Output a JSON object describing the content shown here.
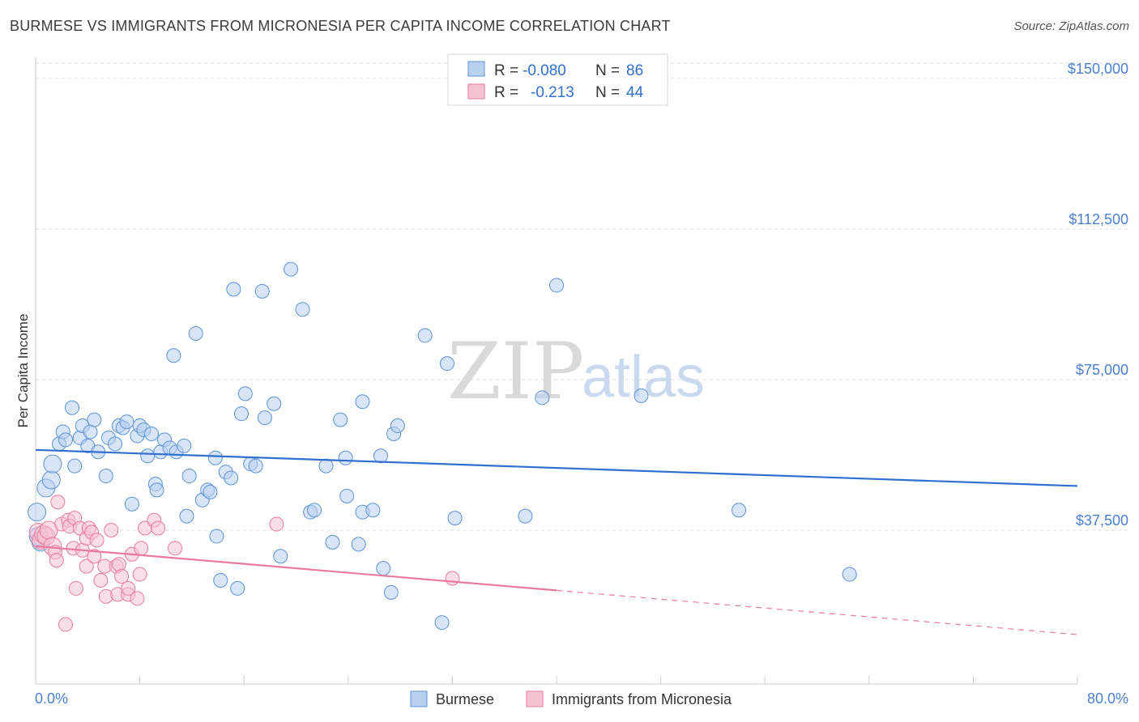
{
  "title": "BURMESE VS IMMIGRANTS FROM MICRONESIA PER CAPITA INCOME CORRELATION CHART",
  "source": "Source: ZipAtlas.com",
  "watermark": {
    "zip": "ZIP",
    "atlas": "atlas"
  },
  "colors": {
    "burmese": "#5b93d6",
    "burmese_fill": "#b8d0ee",
    "micronesia": "#e87aa0",
    "micronesia_fill": "#f6c3d3",
    "grid": "#dddddd",
    "tick_text": "#4a7fd0"
  },
  "legend": {
    "rows": [
      {
        "r_label": "R =",
        "r_value": "-0.080",
        "n_label": "N =",
        "n_value": "86"
      },
      {
        "r_label": "R =",
        "r_value": "-0.213",
        "n_label": "N =",
        "n_value": "44"
      }
    ]
  },
  "chart_data": {
    "type": "scatter",
    "title": "BURMESE VS IMMIGRANTS FROM MICRONESIA PER CAPITA INCOME CORRELATION CHART",
    "xlabel": "",
    "ylabel": "Per Capita Income",
    "xlim": [
      0,
      80
    ],
    "ylim": [
      0,
      155000
    ],
    "x_tick_labels": [
      "0.0%",
      "80.0%"
    ],
    "y_ticks": [
      37500,
      75000,
      112500,
      150000
    ],
    "y_tick_labels": [
      "$37,500",
      "$75,000",
      "$112,500",
      "$150,000"
    ],
    "legend_position": "bottom",
    "series": [
      {
        "name": "Burmese",
        "color": "#5b93d6",
        "points": [
          [
            0.1,
            42000
          ],
          [
            0.8,
            48000
          ],
          [
            1.2,
            50000
          ],
          [
            1.3,
            54000
          ],
          [
            1.8,
            59000
          ],
          [
            2.1,
            62000
          ],
          [
            2.3,
            60000
          ],
          [
            2.8,
            68000
          ],
          [
            3.0,
            53500
          ],
          [
            3.4,
            60500
          ],
          [
            3.6,
            63500
          ],
          [
            4.0,
            58500
          ],
          [
            4.2,
            62000
          ],
          [
            4.5,
            65000
          ],
          [
            4.8,
            57000
          ],
          [
            5.4,
            51000
          ],
          [
            5.6,
            60500
          ],
          [
            6.1,
            59000
          ],
          [
            6.4,
            63500
          ],
          [
            6.7,
            63000
          ],
          [
            7.0,
            64500
          ],
          [
            7.4,
            44000
          ],
          [
            7.8,
            61000
          ],
          [
            8.0,
            63500
          ],
          [
            8.3,
            62500
          ],
          [
            8.6,
            56000
          ],
          [
            8.9,
            61500
          ],
          [
            9.2,
            49000
          ],
          [
            9.3,
            47500
          ],
          [
            9.6,
            57000
          ],
          [
            9.9,
            60000
          ],
          [
            10.3,
            58000
          ],
          [
            10.6,
            81000
          ],
          [
            10.8,
            57000
          ],
          [
            11.4,
            58500
          ],
          [
            11.6,
            41000
          ],
          [
            11.8,
            51000
          ],
          [
            12.3,
            86500
          ],
          [
            12.8,
            45000
          ],
          [
            13.2,
            47500
          ],
          [
            13.4,
            47000
          ],
          [
            13.8,
            55500
          ],
          [
            13.9,
            36000
          ],
          [
            14.2,
            25000
          ],
          [
            14.6,
            52000
          ],
          [
            15.0,
            50500
          ],
          [
            15.2,
            97500
          ],
          [
            15.5,
            23000
          ],
          [
            15.8,
            66500
          ],
          [
            16.1,
            71500
          ],
          [
            16.5,
            54000
          ],
          [
            16.9,
            53500
          ],
          [
            17.4,
            97000
          ],
          [
            17.6,
            65500
          ],
          [
            18.3,
            69000
          ],
          [
            18.8,
            31000
          ],
          [
            19.6,
            102500
          ],
          [
            20.5,
            92500
          ],
          [
            21.1,
            42000
          ],
          [
            21.4,
            42500
          ],
          [
            22.3,
            53500
          ],
          [
            22.8,
            34500
          ],
          [
            23.4,
            65000
          ],
          [
            23.8,
            55500
          ],
          [
            23.9,
            46000
          ],
          [
            24.8,
            34000
          ],
          [
            25.1,
            69500
          ],
          [
            25.1,
            42000
          ],
          [
            25.9,
            42500
          ],
          [
            26.5,
            56000
          ],
          [
            26.7,
            28000
          ],
          [
            27.3,
            22000
          ],
          [
            27.5,
            61500
          ],
          [
            27.8,
            63500
          ],
          [
            29.9,
            86000
          ],
          [
            31.2,
            14500
          ],
          [
            31.6,
            79000
          ],
          [
            32.2,
            40500
          ],
          [
            37.6,
            41000
          ],
          [
            38.9,
            70500
          ],
          [
            40.0,
            98500
          ],
          [
            46.5,
            71000
          ],
          [
            54.0,
            42500
          ],
          [
            62.5,
            26500
          ],
          [
            0.2,
            36000
          ],
          [
            0.4,
            34500
          ]
        ]
      },
      {
        "name": "Immigrants from Micronesia",
        "color": "#e87aa0",
        "points": [
          [
            0.2,
            37000
          ],
          [
            0.4,
            35000
          ],
          [
            0.6,
            36500
          ],
          [
            0.8,
            36000
          ],
          [
            1.0,
            37500
          ],
          [
            1.3,
            33500
          ],
          [
            1.5,
            32000
          ],
          [
            1.6,
            30000
          ],
          [
            1.7,
            44500
          ],
          [
            2.0,
            39000
          ],
          [
            2.3,
            14000
          ],
          [
            2.5,
            40000
          ],
          [
            2.6,
            38500
          ],
          [
            2.9,
            33000
          ],
          [
            3.0,
            40500
          ],
          [
            3.1,
            23000
          ],
          [
            3.4,
            38000
          ],
          [
            3.6,
            32500
          ],
          [
            3.9,
            35500
          ],
          [
            3.9,
            28500
          ],
          [
            4.1,
            38000
          ],
          [
            4.3,
            37000
          ],
          [
            4.5,
            31000
          ],
          [
            4.7,
            35000
          ],
          [
            5.0,
            25000
          ],
          [
            5.3,
            28500
          ],
          [
            5.4,
            21000
          ],
          [
            5.8,
            37500
          ],
          [
            6.2,
            28500
          ],
          [
            6.3,
            21500
          ],
          [
            6.4,
            29000
          ],
          [
            6.6,
            26000
          ],
          [
            7.1,
            21500
          ],
          [
            7.1,
            23000
          ],
          [
            7.4,
            31500
          ],
          [
            7.8,
            20500
          ],
          [
            8.0,
            26500
          ],
          [
            8.1,
            33000
          ],
          [
            8.4,
            38000
          ],
          [
            9.1,
            40000
          ],
          [
            9.4,
            38000
          ],
          [
            10.7,
            33000
          ],
          [
            18.5,
            39000
          ],
          [
            32.0,
            25500
          ]
        ]
      }
    ],
    "trendlines": [
      {
        "series": "Burmese",
        "x": [
          0,
          80
        ],
        "y": [
          57500,
          48500
        ],
        "style": "solid"
      },
      {
        "series": "Immigrants from Micronesia",
        "x": [
          0,
          40
        ],
        "y": [
          33500,
          22500
        ],
        "style": "solid"
      },
      {
        "series": "Immigrants from Micronesia",
        "x": [
          40,
          80
        ],
        "y": [
          22500,
          11500
        ],
        "style": "dashed"
      }
    ]
  }
}
